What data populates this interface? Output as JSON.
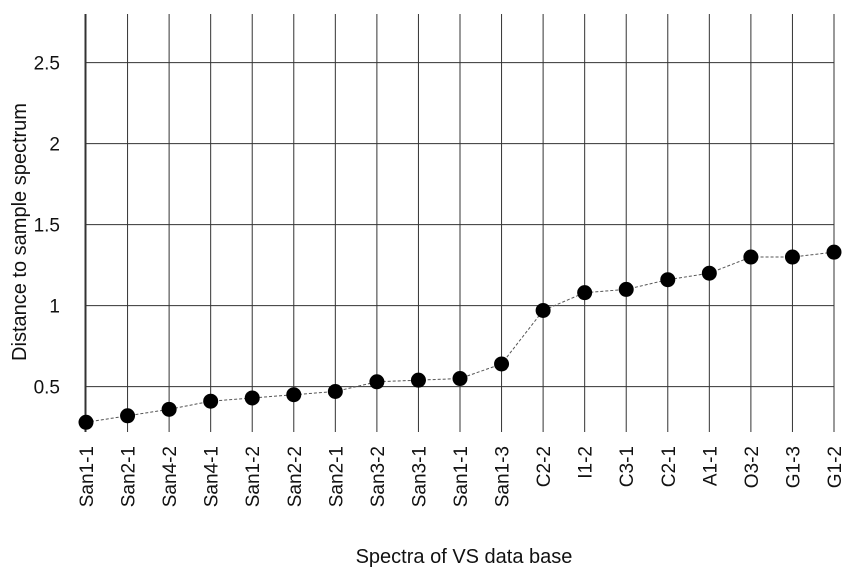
{
  "chart_data": {
    "type": "line",
    "title": "",
    "xlabel": "Spectra of VS data base",
    "ylabel": "Distance to sample spectrum",
    "categories": [
      "San1-1",
      "San2-1",
      "San4-2",
      "San4-1",
      "San1-2",
      "San2-2",
      "San2-1",
      "San3-2",
      "San3-1",
      "San1-1",
      "San1-3",
      "C2-2",
      "I1-2",
      "C3-1",
      "C2-1",
      "A1-1",
      "O3-2",
      "G1-3",
      "G1-2"
    ],
    "series": [
      {
        "values": [
          0.28,
          0.32,
          0.36,
          0.41,
          0.43,
          0.45,
          0.47,
          0.53,
          0.54,
          0.55,
          0.64,
          0.97,
          1.08,
          1.1,
          1.16,
          1.2,
          1.3,
          1.3,
          1.33
        ]
      }
    ],
    "yticks": [
      "0.5",
      "1",
      "1.5",
      "2",
      "2.5"
    ],
    "ylim": [
      0.22,
      2.8
    ],
    "grid": true,
    "marker": "filled-circle",
    "line_style": "dashed",
    "color": "#000000"
  }
}
